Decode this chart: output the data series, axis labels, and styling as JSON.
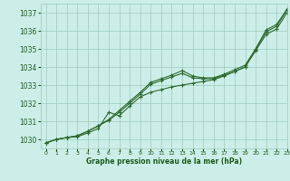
{
  "title": "Graphe pression niveau de la mer (hPa)",
  "bg_color": "#cceee8",
  "grid_color": "#99ccbb",
  "line_color": "#2d6a2d",
  "xlim": [
    -0.5,
    23
  ],
  "ylim": [
    1029.5,
    1037.5
  ],
  "yticks": [
    1030,
    1031,
    1032,
    1033,
    1034,
    1035,
    1036,
    1037
  ],
  "xticks": [
    0,
    1,
    2,
    3,
    4,
    5,
    6,
    7,
    8,
    9,
    10,
    11,
    12,
    13,
    14,
    15,
    16,
    17,
    18,
    19,
    20,
    21,
    22,
    23
  ],
  "series": [
    [
      1029.8,
      1030.0,
      1030.1,
      1030.15,
      1030.35,
      1030.6,
      1031.5,
      1031.3,
      1031.85,
      1032.35,
      1032.6,
      1032.75,
      1032.9,
      1033.0,
      1033.1,
      1033.2,
      1033.3,
      1033.5,
      1033.75,
      1034.0,
      1034.9,
      1035.8,
      1036.1,
      1037.0
    ],
    [
      1029.8,
      1030.0,
      1030.1,
      1030.2,
      1030.45,
      1030.75,
      1031.1,
      1031.6,
      1032.1,
      1032.6,
      1033.15,
      1033.35,
      1033.55,
      1033.8,
      1033.5,
      1033.4,
      1033.4,
      1033.6,
      1033.85,
      1034.1,
      1035.0,
      1036.05,
      1036.35,
      1037.2
    ],
    [
      1029.8,
      1030.0,
      1030.1,
      1030.2,
      1030.45,
      1030.75,
      1031.05,
      1031.5,
      1032.0,
      1032.5,
      1033.05,
      1033.25,
      1033.45,
      1033.65,
      1033.4,
      1033.35,
      1033.35,
      1033.55,
      1033.75,
      1034.0,
      1034.95,
      1035.95,
      1036.25,
      1037.15
    ]
  ]
}
